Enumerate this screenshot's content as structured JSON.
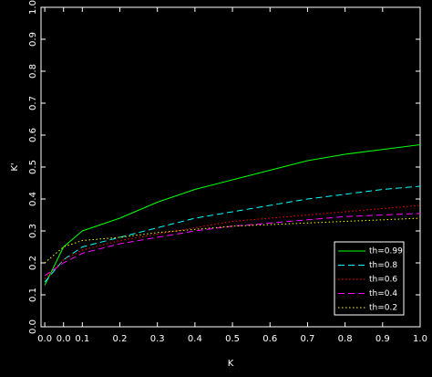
{
  "chart_data": {
    "type": "line",
    "x_label": "K",
    "y_label": "K'",
    "x": [
      0,
      0.05,
      0.1,
      0.2,
      0.3,
      0.4,
      0.5,
      0.6,
      0.7,
      0.8,
      0.9,
      1.0
    ],
    "series": [
      {
        "name": "th=0.99",
        "color": "#00ff00",
        "dash": "solid",
        "values": [
          0.13,
          0.25,
          0.3,
          0.34,
          0.39,
          0.43,
          0.46,
          0.49,
          0.52,
          0.54,
          0.555,
          0.57
        ]
      },
      {
        "name": "th=0.8",
        "color": "#00ffff",
        "dash": "dashed",
        "values": [
          0.14,
          0.21,
          0.25,
          0.28,
          0.31,
          0.34,
          0.36,
          0.38,
          0.4,
          0.415,
          0.43,
          0.44
        ]
      },
      {
        "name": "th=0.6",
        "color": "#ff0000",
        "dash": "dotted",
        "values": [
          0.15,
          0.21,
          0.24,
          0.27,
          0.29,
          0.31,
          0.33,
          0.34,
          0.35,
          0.36,
          0.37,
          0.38
        ]
      },
      {
        "name": "th=0.4",
        "color": "#ff00ff",
        "dash": "dashed",
        "values": [
          0.16,
          0.2,
          0.23,
          0.26,
          0.28,
          0.3,
          0.315,
          0.325,
          0.335,
          0.345,
          0.35,
          0.355
        ]
      },
      {
        "name": "th=0.2",
        "color": "#ffff00",
        "dash": "dotted",
        "values": [
          0.2,
          0.25,
          0.27,
          0.28,
          0.295,
          0.305,
          0.315,
          0.32,
          0.325,
          0.33,
          0.335,
          0.34
        ]
      }
    ],
    "xlim": [
      -0.01,
      1.0
    ],
    "xticks": [
      {
        "value": 0,
        "label": "0.0"
      },
      {
        "value": 0.05,
        "label": "0.0"
      },
      0.1,
      0.2,
      0.3,
      0.4,
      0.5,
      0.6,
      0.7,
      0.8,
      0.9,
      {
        "value": 1,
        "label": "1.0"
      }
    ],
    "ylim": [
      0,
      1
    ],
    "yticks": [
      {
        "value": 0,
        "label": "0.0"
      },
      0.1,
      0.2,
      0.3,
      0.4,
      0.5,
      0.6,
      0.7,
      0.8,
      0.9,
      {
        "value": 1,
        "label": "1.0"
      }
    ],
    "legend": "lower right"
  }
}
